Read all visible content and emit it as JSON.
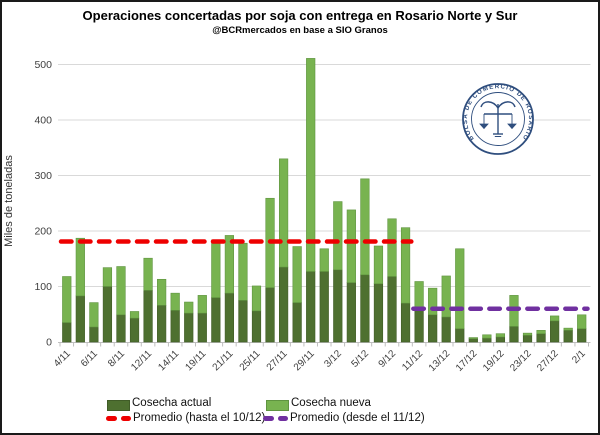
{
  "header": {
    "title": "Operaciones concertadas por soja con entrega en Rosario Norte y Sur",
    "subtitle": "@BCRmercados en base a SIO Granos"
  },
  "y_axis": {
    "label": "Miles de toneladas",
    "ticks": [
      0,
      100,
      200,
      300,
      400,
      500
    ]
  },
  "legend": {
    "cosecha_actual": "Cosecha actual",
    "cosecha_nueva": "Cosecha nueva",
    "promedio_hasta": "Promedio (hasta el 10/12)",
    "promedio_desde": "Promedio (desde el 11/12)"
  },
  "logo": {
    "text": "BOLSA DE COMERCIO DE ROSARIO"
  },
  "colors": {
    "cosecha_actual": "#4E7030",
    "cosecha_actual_border": "#405c27",
    "cosecha_nueva": "#78B350",
    "cosecha_nueva_border": "#5f9440",
    "promedio_hasta": "#EE0000",
    "promedio_desde": "#7030A0",
    "gridline": "#D9D9D9",
    "axis": "#BFBFBF",
    "tick_text": "#404040",
    "logo_navy": "#2F4E7E"
  },
  "chart_data": {
    "type": "bar",
    "stacked": true,
    "title": "Operaciones concertadas por soja con entrega en Rosario Norte y Sur",
    "subtitle": "@BCRmercados en base a SIO Granos",
    "ylabel": "Miles de toneladas",
    "ylim": [
      0,
      500
    ],
    "grid": true,
    "n_bars": 39,
    "x_tick_labels": [
      "4/11",
      "6/11",
      "8/11",
      "12/11",
      "14/11",
      "19/11",
      "21/11",
      "25/11",
      "27/11",
      "29/11",
      "3/12",
      "5/12",
      "9/12",
      "11/12",
      "13/12",
      "17/12",
      "19/12",
      "23/12",
      "27/12",
      "2/1"
    ],
    "x_tick_label_every": 2,
    "series": [
      {
        "name": "Cosecha actual",
        "values": [
          35,
          83,
          27,
          100,
          49,
          43,
          93,
          66,
          57,
          52,
          52,
          80,
          88,
          75,
          56,
          98,
          135,
          71,
          127,
          127,
          130,
          107,
          121,
          105,
          118,
          70,
          58,
          49,
          45,
          24,
          6,
          7,
          9,
          28,
          12,
          15,
          38,
          21,
          24
        ]
      },
      {
        "name": "Cosecha nueva",
        "values": [
          83,
          104,
          44,
          34,
          87,
          12,
          58,
          47,
          31,
          20,
          32,
          104,
          104,
          103,
          45,
          161,
          195,
          101,
          384,
          41,
          123,
          131,
          173,
          68,
          104,
          136,
          51,
          48,
          74,
          144,
          2,
          6,
          6,
          56,
          4,
          6,
          9,
          4,
          25
        ]
      }
    ],
    "reference_lines": [
      {
        "name": "Promedio (hasta el 10/12)",
        "value": 181,
        "from_bar": 0,
        "to_bar": 25,
        "style": "dashed",
        "color_key": "promedio_hasta"
      },
      {
        "name": "Promedio (desde el 11/12)",
        "value": 60,
        "from_bar": 26,
        "to_bar": 38,
        "style": "dashed",
        "color_key": "promedio_desde"
      }
    ],
    "legend_position": "bottom"
  }
}
